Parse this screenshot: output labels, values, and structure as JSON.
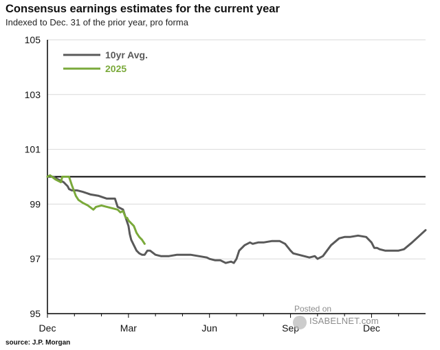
{
  "header": {
    "title": "Consensus earnings estimates for the current year",
    "subtitle": "Indexed to Dec. 31 of the prior year, pro forma"
  },
  "footer": {
    "source": "source: J.P. Morgan"
  },
  "watermark": {
    "posted": "Posted on",
    "brand": "ISABELNET.com"
  },
  "chart_data": {
    "type": "line",
    "title": "Consensus earnings estimates for the current year",
    "subtitle": "Indexed to Dec. 31 of the prior year, pro forma",
    "x_tick_labels": [
      "Dec",
      "Mar",
      "Jun",
      "Sep",
      "Dec"
    ],
    "x_tick_positions": [
      0,
      3,
      6,
      9,
      12
    ],
    "xlim": [
      0,
      14
    ],
    "ylim": [
      95,
      105
    ],
    "y_ticks": [
      95,
      97,
      99,
      101,
      103,
      105
    ],
    "reference_line": 100,
    "legend": {
      "position": "top-left"
    },
    "series": [
      {
        "name": "10yr Avg.",
        "color": "#595959",
        "x": [
          0,
          0.2,
          0.4,
          0.5,
          0.6,
          0.75,
          0.8,
          0.9,
          1.1,
          1.3,
          1.6,
          1.9,
          2.2,
          2.5,
          2.6,
          2.8,
          2.9,
          3.0,
          3.05,
          3.1,
          3.2,
          3.3,
          3.4,
          3.5,
          3.6,
          3.7,
          3.75,
          3.8,
          4.0,
          4.2,
          4.5,
          4.8,
          5.0,
          5.3,
          5.6,
          5.9,
          6.0,
          6.2,
          6.4,
          6.6,
          6.8,
          6.9,
          7.0,
          7.1,
          7.3,
          7.5,
          7.6,
          7.8,
          8.0,
          8.3,
          8.6,
          8.8,
          9.0,
          9.1,
          9.3,
          9.5,
          9.7,
          9.9,
          10.0,
          10.2,
          10.5,
          10.8,
          11.0,
          11.2,
          11.5,
          11.8,
          12.0,
          12.1,
          12.2,
          12.3,
          12.5,
          12.7,
          12.8,
          13.0,
          13.2,
          13.5,
          14.0
        ],
        "values": [
          100.0,
          100.0,
          99.9,
          99.85,
          99.8,
          99.65,
          99.55,
          99.5,
          99.5,
          99.45,
          99.35,
          99.3,
          99.2,
          99.2,
          98.9,
          98.8,
          98.5,
          98.2,
          97.9,
          97.7,
          97.5,
          97.3,
          97.2,
          97.15,
          97.15,
          97.3,
          97.3,
          97.3,
          97.15,
          97.1,
          97.1,
          97.15,
          97.15,
          97.15,
          97.1,
          97.05,
          97.0,
          96.95,
          96.95,
          96.85,
          96.9,
          96.85,
          97.0,
          97.3,
          97.5,
          97.6,
          97.55,
          97.6,
          97.6,
          97.65,
          97.65,
          97.55,
          97.3,
          97.2,
          97.15,
          97.1,
          97.05,
          97.1,
          97.0,
          97.1,
          97.5,
          97.75,
          97.8,
          97.8,
          97.85,
          97.8,
          97.6,
          97.4,
          97.4,
          97.35,
          97.3,
          97.3,
          97.3,
          97.3,
          97.35,
          97.6,
          98.05
        ]
      },
      {
        "name": "2025",
        "color": "#7aa93a",
        "x": [
          0,
          0.1,
          0.3,
          0.5,
          0.55,
          0.6,
          0.8,
          0.9,
          1.05,
          1.15,
          1.3,
          1.5,
          1.7,
          1.8,
          2.0,
          2.2,
          2.4,
          2.6,
          2.7,
          2.8,
          2.9,
          2.95,
          3.0,
          3.1,
          3.2,
          3.3,
          3.4,
          3.5,
          3.6
        ],
        "values": [
          100.0,
          100.05,
          99.9,
          99.8,
          100.0,
          100.0,
          100.0,
          99.7,
          99.3,
          99.15,
          99.05,
          98.95,
          98.8,
          98.9,
          98.95,
          98.9,
          98.85,
          98.8,
          98.7,
          98.75,
          98.5,
          98.5,
          98.4,
          98.3,
          98.2,
          97.95,
          97.8,
          97.7,
          97.55
        ]
      }
    ]
  }
}
